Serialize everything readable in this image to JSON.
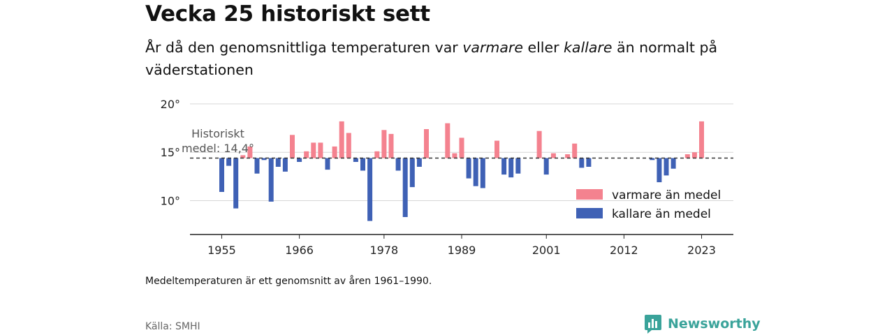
{
  "title": "Vecka 25 historiskt sett",
  "subtitle": {
    "part1": "År då den genomsnittliga temperaturen var ",
    "warm_word": "varmare",
    "part2": " eller ",
    "cold_word": "kallare",
    "part3": " än normalt på väderstationen"
  },
  "note": "Medeltemperaturen är ett genomsnitt av åren 1961–1990.",
  "source": "Källa: SMHI",
  "brand": "Newsworthy",
  "colors": {
    "warm": "#f4828f",
    "cold": "#3f61b5",
    "brand": "#3aa39a"
  },
  "chart_data": {
    "type": "bar",
    "baseline": 14.4,
    "baseline_label_line1": "Historiskt",
    "baseline_label_line2": "medel: 14,4°",
    "ylim": [
      6.5,
      20.5
    ],
    "yticks": [
      {
        "value": 10,
        "label": "10°"
      },
      {
        "value": 15,
        "label": "15°"
      },
      {
        "value": 20,
        "label": "20°"
      }
    ],
    "xlim": [
      1950.5,
      2027.5
    ],
    "xticks": [
      {
        "value": 1955,
        "label": "1955"
      },
      {
        "value": 1966,
        "label": "1966"
      },
      {
        "value": 1978,
        "label": "1978"
      },
      {
        "value": 1989,
        "label": "1989"
      },
      {
        "value": 2001,
        "label": "2001"
      },
      {
        "value": 2012,
        "label": "2012"
      },
      {
        "value": 2023,
        "label": "2023"
      }
    ],
    "legend": {
      "position": "bottom-right",
      "entries": [
        {
          "label": "varmare än medel",
          "color": "#f4828f"
        },
        {
          "label": "kallare än medel",
          "color": "#3f61b5"
        }
      ]
    },
    "x": [
      1955,
      1956,
      1957,
      1958,
      1959,
      1960,
      1961,
      1962,
      1963,
      1964,
      1965,
      1966,
      1967,
      1968,
      1969,
      1970,
      1971,
      1972,
      1973,
      1974,
      1975,
      1976,
      1977,
      1978,
      1979,
      1980,
      1981,
      1982,
      1983,
      1984,
      1985,
      1986,
      1987,
      1988,
      1989,
      1990,
      1991,
      1992,
      1993,
      1994,
      1995,
      1996,
      1997,
      1998,
      1999,
      2000,
      2001,
      2002,
      2003,
      2004,
      2005,
      2006,
      2007,
      2008,
      2009,
      2010,
      2011,
      2012,
      2013,
      2014,
      2015,
      2016,
      2017,
      2018,
      2019,
      2020,
      2021,
      2022,
      2023
    ],
    "values": [
      10.9,
      13.6,
      9.2,
      14.7,
      15.6,
      12.8,
      14.2,
      9.9,
      13.5,
      13.0,
      16.8,
      14.0,
      15.1,
      16.0,
      16.0,
      13.2,
      15.6,
      18.2,
      17.0,
      14.0,
      13.1,
      7.9,
      15.1,
      17.3,
      16.9,
      13.1,
      8.3,
      11.4,
      13.5,
      17.4,
      null,
      null,
      18.0,
      14.9,
      16.5,
      12.3,
      11.5,
      11.3,
      null,
      16.2,
      12.7,
      12.4,
      12.8,
      null,
      null,
      17.2,
      12.7,
      14.9,
      null,
      14.8,
      15.9,
      13.4,
      13.5,
      null,
      null,
      null,
      null,
      null,
      null,
      null,
      null,
      14.2,
      11.9,
      12.6,
      13.3,
      null,
      14.8,
      15.0,
      18.2
    ]
  }
}
